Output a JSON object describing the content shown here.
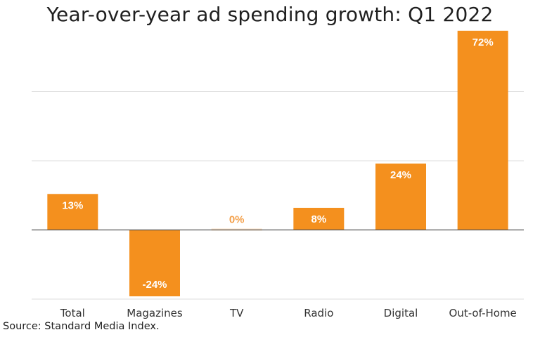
{
  "chart_data": {
    "type": "bar",
    "title": "Year-over-year ad spending growth: Q1 2022",
    "categories": [
      "Total",
      "Magazines",
      "TV",
      "Radio",
      "Digital",
      "Out-of-Home"
    ],
    "values": [
      13,
      -24,
      0,
      8,
      24,
      72
    ],
    "data_labels": [
      "13%",
      "-24%",
      "0%",
      "8%",
      "24%",
      "72%"
    ],
    "ylim": [
      -25,
      75
    ],
    "gridline_values": [
      -25,
      0,
      25,
      50
    ],
    "grid": true,
    "legend": "none",
    "bar_color": "#f4901e",
    "zero_bar_color": "#fce3c8",
    "label_color": "#ffffff",
    "zero_label_color": "#f4a04a"
  },
  "source": "Source: Standard Media Index."
}
